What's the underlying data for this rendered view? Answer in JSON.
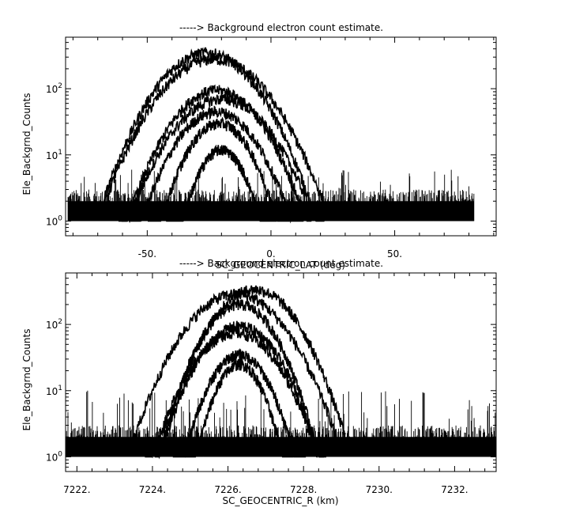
{
  "chart_data": [
    {
      "type": "line",
      "title": "-----> Background electron count estimate.",
      "xlabel": "SC_GEOCENTRIC_LAT (deg)",
      "ylabel": "Ele_Backgrnd_Counts",
      "xlim": [
        -83,
        91
      ],
      "ylim": [
        0.6,
        600
      ],
      "yscale": "log",
      "x_ticks": [
        {
          "value": -50,
          "label": "-50."
        },
        {
          "value": 0,
          "label": "0."
        },
        {
          "value": 50,
          "label": "50."
        }
      ],
      "y_ticks": [
        {
          "value": 1,
          "label": "10",
          "exp": "0"
        },
        {
          "value": 10,
          "label": "10",
          "exp": "1"
        },
        {
          "value": 100,
          "label": "10",
          "exp": "2"
        }
      ],
      "data_x_range": [
        -82,
        82
      ],
      "noise_floor": {
        "min": 1,
        "max": 3,
        "spikes_to": 6
      },
      "peaks": [
        {
          "center": -26,
          "peak": 350,
          "width": 13
        },
        {
          "center": -23,
          "peak": 280,
          "width": 14
        },
        {
          "center": -22,
          "peak": 95,
          "width": 12
        },
        {
          "center": -20,
          "peak": 70,
          "width": 13
        },
        {
          "center": -22,
          "peak": 45,
          "width": 11
        },
        {
          "center": -21,
          "peak": 30,
          "width": 9
        },
        {
          "center": -20,
          "peak": 12,
          "width": 7
        }
      ]
    },
    {
      "type": "line",
      "title": "-----> Background electron count estimate.",
      "xlabel": "SC_GEOCENTRIC_R (km)",
      "ylabel": "Ele_Backgrnd_Counts",
      "xlim": [
        7221.7,
        7233.1
      ],
      "ylim": [
        0.6,
        600
      ],
      "yscale": "log",
      "x_ticks": [
        {
          "value": 7222,
          "label": "7222."
        },
        {
          "value": 7224,
          "label": "7224."
        },
        {
          "value": 7226,
          "label": "7226."
        },
        {
          "value": 7228,
          "label": "7228."
        },
        {
          "value": 7230,
          "label": "7230."
        },
        {
          "value": 7232,
          "label": "7232."
        }
      ],
      "y_ticks": [
        {
          "value": 1,
          "label": "10",
          "exp": "0"
        },
        {
          "value": 10,
          "label": "10",
          "exp": "1"
        },
        {
          "value": 100,
          "label": "10",
          "exp": "2"
        }
      ],
      "data_x_range": [
        7221.7,
        7233.1
      ],
      "noise_floor": {
        "min": 1,
        "max": 3,
        "spikes_to": 10
      },
      "peaks": [
        {
          "center": 7226.7,
          "peak": 340,
          "width": 0.75
        },
        {
          "center": 7226.2,
          "peak": 290,
          "width": 0.85
        },
        {
          "center": 7226.3,
          "peak": 200,
          "width": 0.65
        },
        {
          "center": 7226.3,
          "peak": 95,
          "width": 0.7
        },
        {
          "center": 7226.2,
          "peak": 75,
          "width": 0.75
        },
        {
          "center": 7226.3,
          "peak": 35,
          "width": 0.55
        },
        {
          "center": 7226.3,
          "peak": 25,
          "width": 0.45
        }
      ]
    }
  ]
}
